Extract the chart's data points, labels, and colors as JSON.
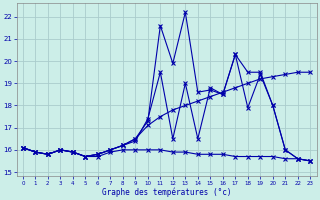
{
  "xlabel": "Graphe des températures (°c)",
  "bg_color": "#cceee8",
  "grid_color": "#aacccc",
  "line_color": "#0000aa",
  "xlim": [
    -0.5,
    23.5
  ],
  "ylim": [
    14.8,
    22.6
  ],
  "yticks": [
    15,
    16,
    17,
    18,
    19,
    20,
    21,
    22
  ],
  "xticks": [
    0,
    1,
    2,
    3,
    4,
    5,
    6,
    7,
    8,
    9,
    10,
    11,
    12,
    13,
    14,
    15,
    16,
    17,
    18,
    19,
    20,
    21,
    22,
    23
  ],
  "line1_x": [
    0,
    1,
    2,
    3,
    4,
    5,
    6,
    7,
    8,
    9,
    10,
    11,
    12,
    13,
    14,
    15,
    16,
    17,
    18,
    19,
    20,
    21,
    22,
    23
  ],
  "line1_y": [
    16.1,
    15.9,
    15.8,
    16.0,
    15.9,
    15.7,
    15.7,
    15.9,
    16.0,
    16.0,
    16.0,
    16.0,
    15.9,
    15.9,
    15.8,
    15.8,
    15.8,
    15.7,
    15.7,
    15.7,
    15.7,
    15.6,
    15.6,
    15.5
  ],
  "line2_x": [
    0,
    1,
    2,
    3,
    4,
    5,
    6,
    7,
    8,
    9,
    10,
    11,
    12,
    13,
    14,
    15,
    16,
    17,
    18,
    19,
    20,
    21,
    22,
    23
  ],
  "line2_y": [
    16.1,
    15.9,
    15.8,
    16.0,
    15.9,
    15.7,
    15.8,
    16.0,
    16.2,
    16.5,
    17.1,
    17.5,
    17.8,
    18.0,
    18.2,
    18.4,
    18.6,
    18.8,
    19.0,
    19.2,
    19.3,
    19.4,
    19.5,
    19.5
  ],
  "line3_x": [
    0,
    1,
    2,
    3,
    4,
    5,
    6,
    7,
    8,
    9,
    10,
    11,
    12,
    13,
    14,
    15,
    16,
    17,
    18,
    19,
    20,
    21,
    22,
    23
  ],
  "line3_y": [
    16.1,
    15.9,
    15.8,
    16.0,
    15.9,
    15.7,
    15.8,
    16.0,
    16.2,
    16.5,
    17.3,
    21.6,
    19.9,
    22.2,
    18.6,
    18.7,
    18.5,
    20.3,
    19.5,
    19.5,
    18.0,
    16.0,
    15.6,
    15.5
  ],
  "line4_x": [
    0,
    1,
    2,
    3,
    4,
    5,
    6,
    7,
    8,
    9,
    10,
    11,
    12,
    13,
    14,
    15,
    16,
    17,
    18,
    19,
    20,
    21,
    22,
    23
  ],
  "line4_y": [
    16.1,
    15.9,
    15.8,
    16.0,
    15.9,
    15.7,
    15.8,
    16.0,
    16.2,
    16.4,
    17.4,
    19.5,
    16.5,
    19.0,
    16.5,
    18.8,
    18.5,
    20.3,
    17.9,
    19.4,
    18.0,
    16.0,
    15.6,
    15.5
  ]
}
